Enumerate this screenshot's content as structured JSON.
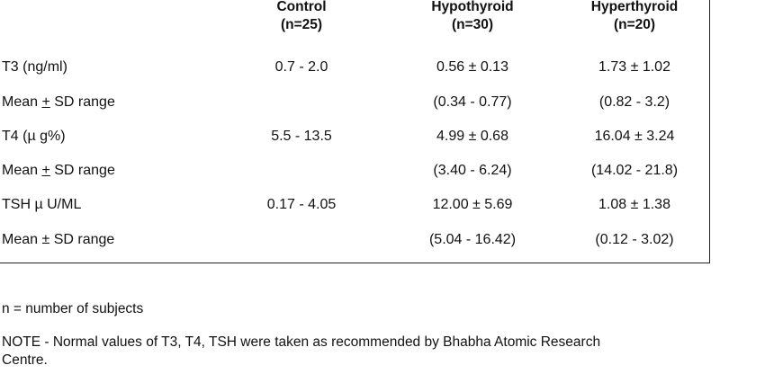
{
  "headers": {
    "control": {
      "name": "Control",
      "n": "(n=25)"
    },
    "hypo": {
      "name": "Hypothyroid",
      "n": "(n=30)"
    },
    "hyper": {
      "name": "Hyperthyroid",
      "n": "(n=20)"
    }
  },
  "rows": [
    {
      "label": "T3 (ng/ml)",
      "control": "0.7 - 2.0",
      "hypo": "0.56 ± 0.13",
      "hyper": "1.73 ± 1.02"
    },
    {
      "label_pre": "Mean ",
      "label_u": "+",
      "label_post": " SD range",
      "control": "",
      "hypo": "(0.34 - 0.77)",
      "hyper": "(0.82 - 3.2)"
    },
    {
      "label": "T4 (µ g%)",
      "control": "5.5 - 13.5",
      "hypo": "4.99 ± 0.68",
      "hyper": "16.04 ± 3.24"
    },
    {
      "label_pre": "Mean ",
      "label_u": "+",
      "label_post": " SD range",
      "control": "",
      "hypo": "(3.40 - 6.24)",
      "hyper": "(14.02 - 21.8)"
    },
    {
      "label": "TSH µ U/ML",
      "control": "0.17 - 4.05",
      "hypo": "12.00 ± 5.69",
      "hyper": "1.08 ± 1.38"
    },
    {
      "label": "Mean ± SD range",
      "control": "",
      "hypo": "(5.04 - 16.42)",
      "hyper": "(0.12 - 3.02)"
    }
  ],
  "footnotes": {
    "n_def": "n = number of subjects",
    "note_line1": "NOTE - Normal values of T3, T4, TSH were taken as recommended by Bhabha Atomic Research",
    "note_line2": "Centre."
  }
}
